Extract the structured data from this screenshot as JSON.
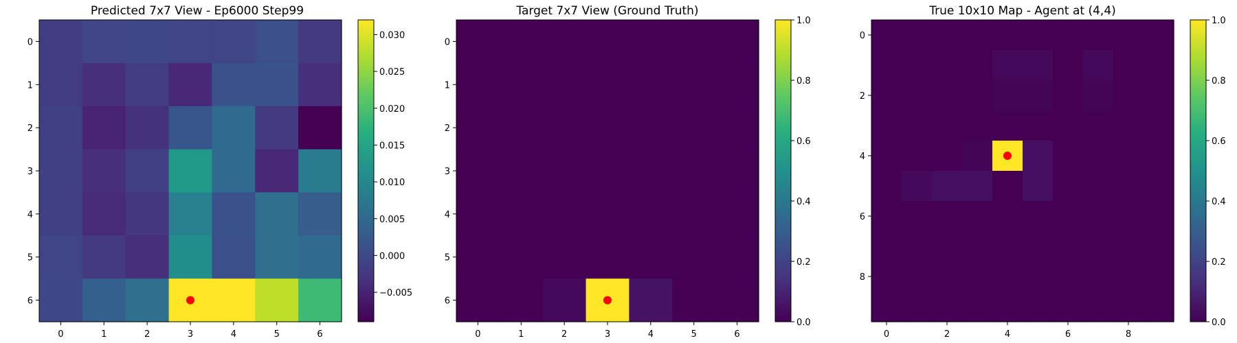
{
  "chart_data": [
    {
      "type": "heatmap",
      "title": "Predicted 7x7 View - Ep6000 Step99",
      "x_ticks": [
        0,
        1,
        2,
        3,
        4,
        5,
        6
      ],
      "y_ticks": [
        0,
        1,
        2,
        3,
        4,
        5,
        6
      ],
      "values": [
        [
          -0.0015,
          -0.0005,
          0.0,
          -0.0005,
          -0.0005,
          0.001,
          -0.002
        ],
        [
          -0.0015,
          -0.0035,
          -0.0015,
          -0.0045,
          0.0015,
          0.0015,
          -0.0035
        ],
        [
          -0.001,
          -0.005,
          -0.003,
          0.002,
          0.005,
          -0.002,
          -0.009
        ],
        [
          -0.001,
          -0.0035,
          -0.001,
          0.013,
          0.005,
          -0.0045,
          0.008
        ],
        [
          -0.001,
          -0.004,
          -0.0025,
          0.009,
          0.0015,
          0.006,
          0.003
        ],
        [
          -0.0005,
          -0.002,
          -0.0035,
          0.011,
          0.001,
          0.006,
          0.005
        ],
        [
          0.0,
          0.0035,
          0.006,
          0.032,
          0.032,
          0.028,
          0.019
        ]
      ],
      "color_range": [
        -0.009,
        0.032
      ],
      "colorbar_ticks": [
        -0.005,
        0.0,
        0.005,
        0.01,
        0.015,
        0.02,
        0.025,
        0.03
      ],
      "colorbar_tick_labels": [
        "−0.005",
        "0.000",
        "0.005",
        "0.010",
        "0.015",
        "0.020",
        "0.025",
        "0.030"
      ],
      "colormap": "viridis",
      "marker": {
        "x": 3,
        "y": 6,
        "color": "#ff0000"
      }
    },
    {
      "type": "heatmap",
      "title": "Target 7x7 View (Ground Truth)",
      "x_ticks": [
        0,
        1,
        2,
        3,
        4,
        5,
        6
      ],
      "y_ticks": [
        0,
        1,
        2,
        3,
        4,
        5,
        6
      ],
      "values": [
        [
          0.0,
          0.0,
          0.0,
          0.0,
          0.0,
          0.0,
          0.0
        ],
        [
          0.0,
          0.0,
          0.0,
          0.0,
          0.0,
          0.0,
          0.0
        ],
        [
          0.0,
          0.0,
          0.0,
          0.0,
          0.0,
          0.0,
          0.0
        ],
        [
          0.0,
          0.0,
          0.0,
          0.0,
          0.0,
          0.0,
          0.0
        ],
        [
          0.0,
          0.0,
          0.0,
          0.0,
          0.0,
          0.0,
          0.0
        ],
        [
          0.0,
          0.0,
          0.0,
          0.0,
          0.0,
          0.0,
          0.0
        ],
        [
          0.0,
          0.0,
          0.02,
          1.0,
          0.05,
          0.0,
          0.0
        ]
      ],
      "color_range": [
        0.0,
        1.0
      ],
      "colorbar_ticks": [
        0.0,
        0.2,
        0.4,
        0.6,
        0.8,
        1.0
      ],
      "colorbar_tick_labels": [
        "0.0",
        "0.2",
        "0.4",
        "0.6",
        "0.8",
        "1.0"
      ],
      "colormap": "viridis",
      "marker": {
        "x": 3,
        "y": 6,
        "color": "#ff0000"
      }
    },
    {
      "type": "heatmap",
      "title": "True 10x10 Map - Agent at (4,4)",
      "x_ticks": [
        0,
        2,
        4,
        6,
        8
      ],
      "y_ticks": [
        0,
        2,
        4,
        6,
        8
      ],
      "values": [
        [
          0.0,
          0.0,
          0.0,
          0.0,
          0.0,
          0.0,
          0.0,
          0.0,
          0.0,
          0.0
        ],
        [
          0.0,
          0.0,
          0.0,
          0.0,
          0.02,
          0.02,
          0.0,
          0.02,
          0.0,
          0.0
        ],
        [
          0.0,
          0.0,
          0.0,
          0.0,
          0.01,
          0.01,
          0.0,
          0.01,
          0.0,
          0.0
        ],
        [
          0.0,
          0.0,
          0.0,
          0.0,
          0.0,
          0.0,
          0.0,
          0.0,
          0.0,
          0.0
        ],
        [
          0.0,
          0.0,
          0.0,
          0.01,
          1.0,
          0.04,
          0.0,
          0.0,
          0.0,
          0.0
        ],
        [
          0.0,
          0.02,
          0.04,
          0.04,
          0.0,
          0.04,
          0.0,
          0.0,
          0.0,
          0.0
        ],
        [
          0.0,
          0.0,
          0.0,
          0.0,
          0.0,
          0.0,
          0.0,
          0.0,
          0.0,
          0.0
        ],
        [
          0.0,
          0.0,
          0.0,
          0.0,
          0.0,
          0.0,
          0.0,
          0.0,
          0.0,
          0.0
        ],
        [
          0.0,
          0.0,
          0.0,
          0.0,
          0.0,
          0.0,
          0.0,
          0.0,
          0.0,
          0.0
        ],
        [
          0.0,
          0.0,
          0.0,
          0.0,
          0.0,
          0.0,
          0.0,
          0.0,
          0.0,
          0.0
        ]
      ],
      "color_range": [
        0.0,
        1.0
      ],
      "colorbar_ticks": [
        0.0,
        0.2,
        0.4,
        0.6,
        0.8,
        1.0
      ],
      "colorbar_tick_labels": [
        "0.0",
        "0.2",
        "0.4",
        "0.6",
        "0.8",
        "1.0"
      ],
      "colormap": "viridis",
      "marker": {
        "x": 4,
        "y": 4,
        "color": "#ff0000"
      }
    }
  ]
}
